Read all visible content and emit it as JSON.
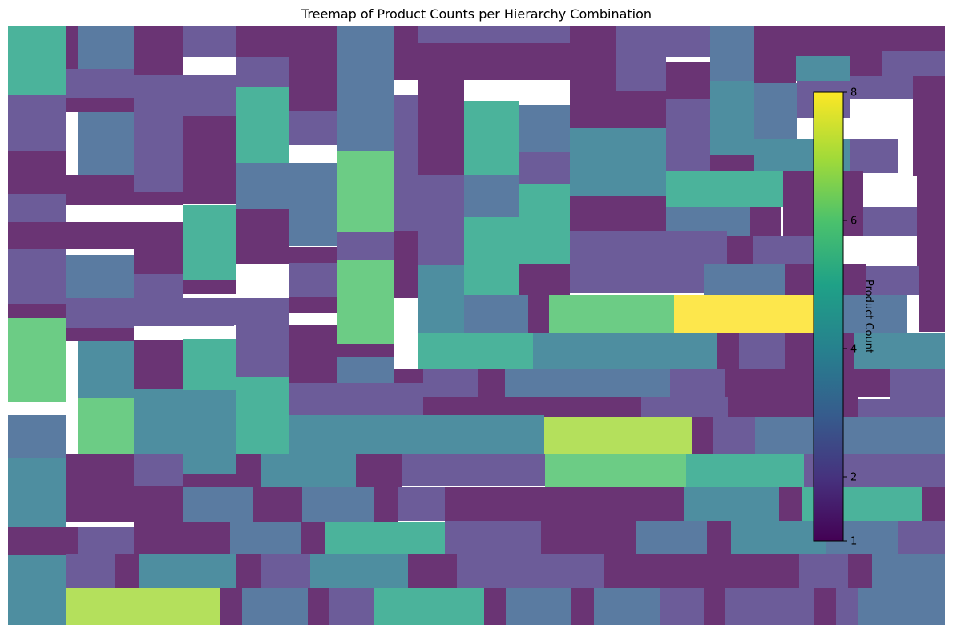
{
  "chart_data": {
    "type": "treemap",
    "title": "Treemap of Product Counts per Hierarchy Combination",
    "colorbar": {
      "label": "Product Count",
      "range": [
        1,
        8
      ],
      "ticks": [
        1,
        2,
        4,
        6,
        8
      ],
      "colormap": "viridis",
      "placement": "right-inside"
    },
    "palette": {
      "1": "#6a3474",
      "2": "#6c5c99",
      "3": "#5a7ba1",
      "4": "#4e8ea0",
      "5": "#4bb39b",
      "6": "#6ccc85",
      "7": "#b4e05c",
      "8": "#fde74c"
    }
  }
}
